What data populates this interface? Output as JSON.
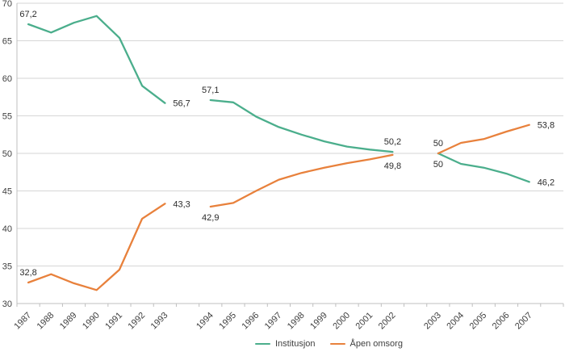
{
  "chart_data": {
    "type": "line",
    "title": "",
    "y_axis": {
      "min": 30,
      "max": 70,
      "step": 5,
      "ticks": [
        70,
        65,
        60,
        55,
        50,
        45,
        40,
        35,
        30
      ]
    },
    "x_groups": [
      [
        "1987",
        "1988",
        "1989",
        "1990",
        "1991",
        "1992",
        "1993"
      ],
      [
        "1994",
        "1995",
        "1996",
        "1997",
        "1998",
        "1999",
        "2000",
        "2001",
        "2002"
      ],
      [
        "2003",
        "2004",
        "2005",
        "2006",
        "2007"
      ]
    ],
    "series": [
      {
        "name": "Institusjon",
        "color": "#4BAE8C",
        "groups": [
          [
            67.2,
            66.1,
            67.4,
            68.3,
            65.4,
            59.0,
            56.7
          ],
          [
            57.1,
            56.8,
            54.9,
            53.5,
            52.5,
            51.6,
            50.9,
            50.5,
            50.2
          ],
          [
            50.0,
            48.6,
            48.1,
            47.3,
            46.2
          ]
        ]
      },
      {
        "name": "Åpen omsorg",
        "color": "#E8813C",
        "groups": [
          [
            32.8,
            33.9,
            32.7,
            31.8,
            34.5,
            41.3,
            43.3
          ],
          [
            42.9,
            43.4,
            45.0,
            46.5,
            47.4,
            48.1,
            48.7,
            49.2,
            49.8
          ],
          [
            50.0,
            51.4,
            51.9,
            52.9,
            53.8
          ]
        ]
      }
    ],
    "point_labels": [
      {
        "series": 0,
        "year": "1987",
        "text": "67,2",
        "pos": "above"
      },
      {
        "series": 0,
        "year": "1993",
        "text": "56,7",
        "pos": "right"
      },
      {
        "series": 0,
        "year": "1994",
        "text": "57,1",
        "pos": "above"
      },
      {
        "series": 0,
        "year": "2002",
        "text": "50,2",
        "pos": "above"
      },
      {
        "series": 0,
        "year": "2003",
        "text": "50",
        "pos": "below"
      },
      {
        "series": 0,
        "year": "2007",
        "text": "46,2",
        "pos": "right"
      },
      {
        "series": 1,
        "year": "1987",
        "text": "32,8",
        "pos": "above"
      },
      {
        "series": 1,
        "year": "1993",
        "text": "43,3",
        "pos": "right"
      },
      {
        "series": 1,
        "year": "1994",
        "text": "42,9",
        "pos": "below"
      },
      {
        "series": 1,
        "year": "2002",
        "text": "49,8",
        "pos": "below"
      },
      {
        "series": 1,
        "year": "2003",
        "text": "50",
        "pos": "above"
      },
      {
        "series": 1,
        "year": "2007",
        "text": "53,8",
        "pos": "right"
      }
    ],
    "legend": {
      "position": "bottom-center",
      "items": [
        "Institusjon",
        "Åpen omsorg"
      ]
    },
    "grid": true
  },
  "colors": {
    "background": "#FFFFFF",
    "gridline": "#D6D6D6",
    "axis": "#BFBFBF",
    "axis_text": "#3F3F3F",
    "label_text": "#2B2B2B"
  }
}
